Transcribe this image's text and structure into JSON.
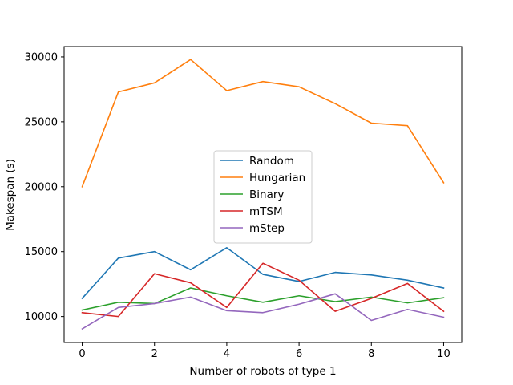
{
  "chart_data": {
    "type": "line",
    "title": "",
    "xlabel": "Number of robots of type 1",
    "ylabel": "Makespan (s)",
    "xlim": [
      -0.5,
      10.5
    ],
    "ylim": [
      8000,
      30800
    ],
    "xticks": [
      0,
      2,
      4,
      6,
      8,
      10
    ],
    "yticks": [
      10000,
      15000,
      20000,
      25000,
      30000
    ],
    "grid": false,
    "legend_position": "center",
    "x": [
      0,
      1,
      2,
      3,
      4,
      5,
      6,
      7,
      8,
      9,
      10
    ],
    "series": [
      {
        "name": "Random",
        "color": "#1f77b4",
        "values": [
          11400,
          14500,
          15000,
          13600,
          15300,
          13250,
          12700,
          13400,
          13200,
          12800,
          12200
        ]
      },
      {
        "name": "Hungarian",
        "color": "#ff7f0e",
        "values": [
          20000,
          27300,
          28000,
          29800,
          27400,
          28100,
          27700,
          26400,
          24900,
          24700,
          20300
        ]
      },
      {
        "name": "Binary",
        "color": "#2ca02c",
        "values": [
          10500,
          11100,
          11000,
          12200,
          11600,
          11100,
          11600,
          11150,
          11500,
          11050,
          11450
        ]
      },
      {
        "name": "mTSM",
        "color": "#d62728",
        "values": [
          10300,
          10000,
          13300,
          12600,
          10700,
          14100,
          12800,
          10400,
          11400,
          12550,
          10400
        ]
      },
      {
        "name": "mStep",
        "color": "#9467bd",
        "values": [
          9050,
          10700,
          11000,
          11500,
          10450,
          10300,
          10950,
          11750,
          9700,
          10550,
          9950
        ]
      }
    ]
  }
}
